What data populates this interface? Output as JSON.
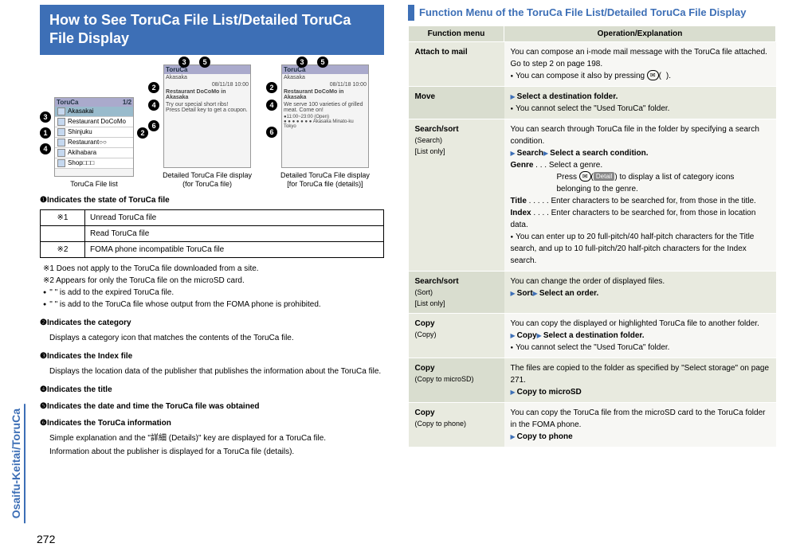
{
  "left": {
    "heading": "How to See ToruCa File List/Detailed ToruCa File Display",
    "shots": {
      "list_caption": "ToruCa File list",
      "detail1_caption_line1": "Detailed ToruCa File display",
      "detail1_caption_line2": "(for ToruCa file)",
      "detail2_caption_line1": "Detailed ToruCa File display",
      "detail2_caption_line2": "[for ToruCa file (details)]",
      "list_header": "ToruCa",
      "list_page": "1/2",
      "list_items": [
        "Akasakai",
        "Restaurant DoCoMo",
        "Shinjuku",
        "Restaurant○○",
        "Akihabara",
        "Shop□□□"
      ],
      "detail_title": "ToruCa",
      "detail_sub": "Akasaka",
      "detail_date": "08/11/18 10:00",
      "detail_place": "Restaurant DoCoMo in Akasaka",
      "detail_body1": "Try our special short ribs!\nPress Detail key to get a coupon.",
      "detail_body2": "We serve 100 varieties of grilled meat. Come on!",
      "detail_footer": "●11:00~23:00 (Open)\n● ● ● ● ● ● ● Akasaka Minato-ku Tokyo"
    },
    "callouts": {
      "c1": "1",
      "c2": "2",
      "c3": "3",
      "c4": "4",
      "c5": "5",
      "c6": "6"
    },
    "state_heading": "❶Indicates the state of ToruCa file",
    "legend": [
      {
        "icon": "※1",
        "text": "Unread ToruCa file"
      },
      {
        "icon": "",
        "text": "Read ToruCa file"
      },
      {
        "icon": "※2",
        "text": "FOMA phone incompatible ToruCa file"
      }
    ],
    "note1": "※1 Does not apply to the ToruCa file downloaded from a site.",
    "note2": "※2 Appears for only the ToruCa file on the microSD card.",
    "note3": "\" \" is add to the expired ToruCa file.",
    "note4": "\" \" is add to the ToruCa file whose output from the FOMA phone is prohibited.",
    "h2": "❷Indicates the category",
    "d2": "Displays a category icon that matches the contents of the ToruCa file.",
    "h3": "❸Indicates the Index file",
    "d3": "Displays the location data of the publisher that publishes the information about the ToruCa file.",
    "h4": "❹Indicates the title",
    "h5": "❺Indicates the date and time the ToruCa file was obtained",
    "h6": "❻Indicates the ToruCa information",
    "d6a": "Simple explanation and the \"詳細 (Details)\" key are displayed for a ToruCa file.",
    "d6b": "Information about the publisher is displayed for a ToruCa file (details).",
    "side_tab": "Osaifu-Keitai/ToruCa",
    "page_number": "272"
  },
  "right": {
    "section_title": "Function Menu of the ToruCa File List/Detailed ToruCa File Display",
    "th1": "Function menu",
    "th2": "Operation/Explanation",
    "rows": [
      {
        "name": "Attach to mail",
        "body": [
          {
            "t": "text",
            "v": "You can compose an i-mode mail message with the ToruCa file attached."
          },
          {
            "t": "text",
            "v": "Go to step 2 on page 198."
          },
          {
            "t": "dot",
            "v": "You can compose it also by pressing "
          },
          {
            "t": "btn_oval",
            "v": "✉"
          },
          {
            "t": "text_i",
            "v": "("
          },
          {
            "t": "btn_rect",
            "v": " "
          },
          {
            "t": "text_i",
            "v": ")."
          }
        ]
      },
      {
        "name": "Move",
        "body": [
          {
            "t": "arrow_bold",
            "v": "Select a destination folder."
          },
          {
            "t": "dot",
            "v": "You cannot select the \"Used ToruCa\" folder."
          }
        ]
      },
      {
        "name": "Search/sort",
        "sub": "(Search)\n[List only]",
        "body": [
          {
            "t": "text",
            "v": "You can search through ToruCa file in the folder by specifying a search condition."
          },
          {
            "t": "arrow_bold2",
            "l": "Search",
            "r": "Select a search condition."
          },
          {
            "t": "def",
            "k": "Genre",
            "dots": " . . . ",
            "v": "Select a genre."
          },
          {
            "t": "def_cont",
            "v": "Press "
          },
          {
            "t": "btn_oval",
            "v": "✉"
          },
          {
            "t": "text_i",
            "v": "("
          },
          {
            "t": "btn_rect",
            "v": "Detail"
          },
          {
            "t": "text_i",
            "v": ") to display a list of category icons belonging to the genre."
          },
          {
            "t": "def",
            "k": "Title",
            "dots": " . . . . . ",
            "v": "Enter characters to be searched for, from those in the title."
          },
          {
            "t": "def",
            "k": "Index",
            "dots": " . . . . ",
            "v": "Enter characters to be searched for, from those in location data."
          },
          {
            "t": "dot",
            "v": "You can enter up to 20 full-pitch/40 half-pitch characters for the Title search, and up to 10 full-pitch/20 half-pitch characters for the Index search."
          }
        ]
      },
      {
        "name": "Search/sort",
        "sub": "(Sort)\n[List only]",
        "body": [
          {
            "t": "text",
            "v": "You can change the order of displayed files."
          },
          {
            "t": "arrow_bold2",
            "l": "Sort",
            "r": "Select an order."
          }
        ]
      },
      {
        "name": "Copy",
        "sub": "(Copy)",
        "body": [
          {
            "t": "text",
            "v": "You can copy the displayed or highlighted ToruCa file to another folder."
          },
          {
            "t": "arrow_bold2",
            "l": "Copy",
            "r": "Select a destination folder."
          },
          {
            "t": "dot",
            "v": "You cannot select the \"Used ToruCa\" folder."
          }
        ]
      },
      {
        "name": "Copy",
        "sub": "(Copy to microSD)",
        "body": [
          {
            "t": "text",
            "v": "The files are copied to the folder as specified by \"Select storage\" on page 271."
          },
          {
            "t": "arrow_bold",
            "v": "Copy to microSD"
          }
        ]
      },
      {
        "name": "Copy",
        "sub": "(Copy to phone)",
        "body": [
          {
            "t": "text",
            "v": "You can copy the ToruCa file from the microSD card to the ToruCa folder in the FOMA phone."
          },
          {
            "t": "arrow_bold",
            "v": "Copy to phone"
          }
        ]
      }
    ]
  }
}
